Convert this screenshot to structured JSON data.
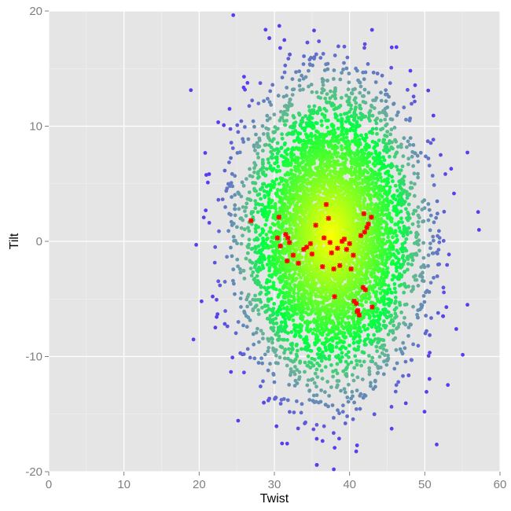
{
  "chart_data": {
    "type": "scatter",
    "title": "",
    "xlabel": "Twist",
    "ylabel": "Tilt",
    "xlim": [
      0,
      60
    ],
    "ylim": [
      -20,
      20
    ],
    "x_ticks": [
      "0",
      "10",
      "20",
      "30",
      "40",
      "50",
      "60"
    ],
    "y_ticks": [
      "-20",
      "-10",
      "0",
      "10",
      "20"
    ],
    "x_tick_values": [
      0,
      10,
      20,
      30,
      40,
      50,
      60
    ],
    "y_tick_values": [
      -20,
      -10,
      0,
      10,
      20
    ],
    "grid": true,
    "legend": "none",
    "colors": {
      "panel_background": "#e5e5e5",
      "grid_major": "#ffffff",
      "density_high": "#ffff00",
      "density_mid": "#00ff40",
      "density_low_mid": "#6ab09a",
      "density_low": "#5a3cf0",
      "highlight": "#ff0000"
    },
    "distribution": {
      "description_kind": "bivariate-normal-cloud",
      "center": [
        37.5,
        0.5
      ],
      "sd": [
        5.5,
        6.0
      ],
      "count": 6000
    },
    "highlight_points": [
      [
        26.9,
        1.8
      ],
      [
        30.4,
        0.3
      ],
      [
        30.6,
        2.1
      ],
      [
        30.8,
        -0.4
      ],
      [
        31.5,
        0.6
      ],
      [
        31.8,
        0.3
      ],
      [
        31.7,
        -1.7
      ],
      [
        32.0,
        -0.1
      ],
      [
        32.5,
        -1.2
      ],
      [
        33.2,
        -1.9
      ],
      [
        33.9,
        -0.7
      ],
      [
        34.3,
        -0.5
      ],
      [
        34.8,
        -0.2
      ],
      [
        35.0,
        -1.1
      ],
      [
        35.5,
        1.4
      ],
      [
        36.4,
        -2.2
      ],
      [
        36.6,
        0.3
      ],
      [
        36.9,
        3.2
      ],
      [
        37.2,
        2.0
      ],
      [
        37.4,
        -0.1
      ],
      [
        37.6,
        -1.0
      ],
      [
        37.9,
        -2.4
      ],
      [
        38.0,
        -4.8
      ],
      [
        38.4,
        -0.6
      ],
      [
        38.7,
        -2.1
      ],
      [
        39.0,
        0.0
      ],
      [
        39.3,
        0.2
      ],
      [
        39.6,
        -0.7
      ],
      [
        40.0,
        -0.2
      ],
      [
        40.2,
        -2.4
      ],
      [
        40.5,
        -1.2
      ],
      [
        40.6,
        -5.2
      ],
      [
        40.9,
        -5.4
      ],
      [
        41.0,
        -6.1
      ],
      [
        41.3,
        -6.4
      ],
      [
        41.5,
        0.5
      ],
      [
        41.8,
        -4.0
      ],
      [
        41.9,
        2.4
      ],
      [
        42.0,
        0.8
      ],
      [
        42.1,
        -4.2
      ],
      [
        42.3,
        1.2
      ],
      [
        42.5,
        1.5
      ],
      [
        42.9,
        2.1
      ],
      [
        43.0,
        -5.7
      ],
      [
        41.1,
        -6.0
      ]
    ]
  }
}
